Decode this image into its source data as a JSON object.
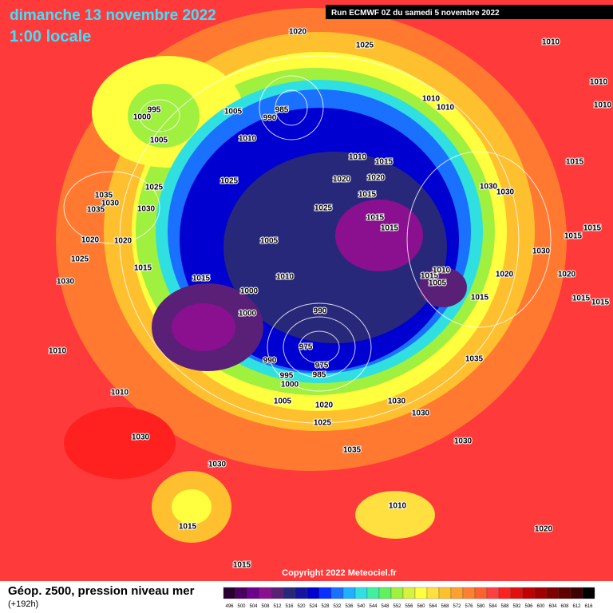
{
  "header": {
    "date": "dimanche 13 novembre 2022",
    "time": "1:00 locale",
    "run": "Run ECMWF 0Z du samedi 5 novembre 2022"
  },
  "pressure_labels": [
    "1020",
    "1025",
    "1010",
    "1010",
    "1010",
    "995",
    "1000",
    "985",
    "990",
    "1005",
    "1005",
    "1010",
    "1010",
    "1010",
    "1015",
    "1025",
    "1025",
    "1035",
    "1030",
    "1035",
    "1030",
    "1010",
    "1015",
    "1020",
    "1020",
    "1015",
    "1025",
    "1015",
    "1015",
    "1030",
    "1030",
    "1020",
    "1020",
    "1005",
    "1015",
    "1015",
    "1025",
    "1015",
    "1030",
    "1030",
    "1015",
    "1010",
    "1015",
    "1005",
    "1010",
    "1020",
    "1020",
    "1000",
    "1015",
    "1015",
    "1015",
    "990",
    "1000",
    "975",
    "1035",
    "1010",
    "990",
    "975",
    "995",
    "985",
    "1000",
    "1010",
    "1005",
    "1020",
    "1030",
    "1030",
    "1025",
    "1030",
    "1035",
    "1030",
    "1030",
    "1010",
    "1015",
    "1020",
    "1015"
  ],
  "copyright": "Copyright 2022 Meteociel.fr",
  "legend": {
    "title": "Géop. z500, pression niveau mer",
    "lead": "(+192h)",
    "values": [
      496,
      500,
      504,
      508,
      512,
      516,
      520,
      524,
      528,
      532,
      536,
      540,
      544,
      548,
      552,
      556,
      560,
      564,
      568,
      572,
      576,
      580,
      584,
      588,
      592,
      596,
      600,
      604,
      608,
      612,
      616
    ],
    "colors": [
      "#2a0030",
      "#4a0060",
      "#6e0090",
      "#8a1090",
      "#5a2078",
      "#28287a",
      "#1414a0",
      "#0000d0",
      "#0a30ff",
      "#1a70ff",
      "#20b0ff",
      "#30e0e0",
      "#40f0a0",
      "#60f060",
      "#a0f040",
      "#d8f040",
      "#ffff40",
      "#ffe040",
      "#ffc030",
      "#ffa030",
      "#ff8030",
      "#ff6030",
      "#ff4040",
      "#ff2020",
      "#e01010",
      "#c00000",
      "#a00000",
      "#800000",
      "#600000",
      "#400000",
      "#000000"
    ]
  }
}
